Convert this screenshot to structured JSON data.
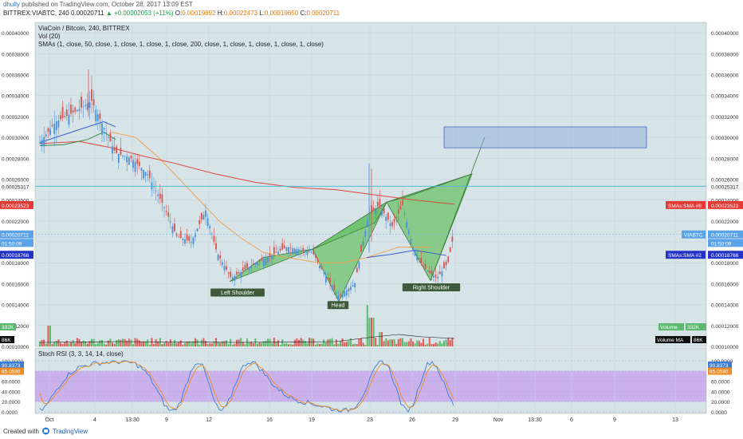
{
  "header": {
    "user": "dhully",
    "published": "published on TradingView.com, October 28, 2017 13:09 EST",
    "symbol_line": "BITTREX:VIABTC, 240",
    "o": "0.00020711",
    "change": "▲ +0.00002053 (+11%)",
    "o_label": "O:",
    "o_val": "0.00019892",
    "h_label": "H:",
    "h_val": "0.00022473",
    "l_label": "L:",
    "l_val": "0.00019650",
    "c_label": "C:",
    "c_val": "0.00020711"
  },
  "legend": {
    "title": "ViaCoin  / Bitcoin, 240, BITTREX",
    "vol": "Vol (20)",
    "smas": "SMAs (1, close, 50, close, 1, close, 1, close, 1, close, 200, close, 1, close, 1, close, 1, close, 1, close)",
    "stoch": "Stoch RSI (3, 3, 14, 14, close)"
  },
  "footer": {
    "created": "Created with",
    "brand": "TradingView"
  },
  "colors": {
    "panel_bg": "#d6e4e8",
    "rsi_band": "#c8a8ec",
    "green_fill": "#6cc16a",
    "sma_orange": "#f0a050",
    "sma_red": "#d9493e",
    "sma_blue": "#3a5cc8",
    "sma_green": "#3f8a3f",
    "candle_up": "#4a90d9",
    "candle_down": "#d9534f"
  },
  "chart_data": {
    "type": "candlestick",
    "y_ticks": [
      "0.00040000",
      "0.00038000",
      "0.00036000",
      "0.00034000",
      "0.00032000",
      "0.00030000",
      "0.00028000",
      "0.00026000",
      "0.00024000",
      "0.00022000",
      "0.00020000",
      "0.00018000",
      "0.00016000",
      "0.00014000",
      "0.00012000",
      "0.00010000"
    ],
    "ylim": [
      0.0001,
      0.00041
    ],
    "x_ticks": [
      "Oct",
      "4",
      "13:30",
      "9",
      "12",
      "16",
      "19",
      "23",
      "26",
      "29",
      "Nov",
      "13:30",
      "6",
      "9",
      "13"
    ],
    "price_badges": [
      {
        "label": "0.00025317",
        "value": 0.00025317,
        "color": "#f4f4f4",
        "text_color": "#333"
      },
      {
        "label": "0.00023523",
        "value": 0.00023523,
        "color": "#e53935",
        "text_color": "#fff"
      },
      {
        "label": "0.00020711",
        "value": 0.00020711,
        "color": "#5aa3e8",
        "text_color": "#fff"
      },
      {
        "label": "01:50:09",
        "value": 0.000199,
        "color": "#5aa3e8",
        "text_color": "#fff"
      },
      {
        "label": "0.00018766",
        "value": 0.00018766,
        "color": "#2633c7",
        "text_color": "#fff"
      }
    ],
    "right_tags": [
      {
        "label": "SMAs:SMA #6",
        "value": 0.00023523,
        "color": "#e53935"
      },
      {
        "label": "VIABTC",
        "value": 0.00020711,
        "color": "#5aa3e8"
      },
      {
        "label": "SMAs:SMA #2",
        "value": 0.00018766,
        "color": "#2633c7"
      }
    ],
    "horizontal_line": 0.00025317,
    "current_price_line": 0.00020711,
    "annotations": [
      "Left Shoulder",
      "Head",
      "Right Shoulder"
    ],
    "volume": {
      "label_left": "332K",
      "label_left2": "86K",
      "label_right": "Volume",
      "label_right_val": "332K",
      "label_right2": "Volume MA",
      "label_right2_val": "86K"
    },
    "stoch_rsi": {
      "ticks": [
        "100.0000",
        "80.0000",
        "60.0000",
        "40.0000",
        "20.0000",
        "0.0000"
      ],
      "k_label": "90.8373",
      "d_label": "85.0580",
      "band": [
        20,
        80
      ]
    }
  }
}
